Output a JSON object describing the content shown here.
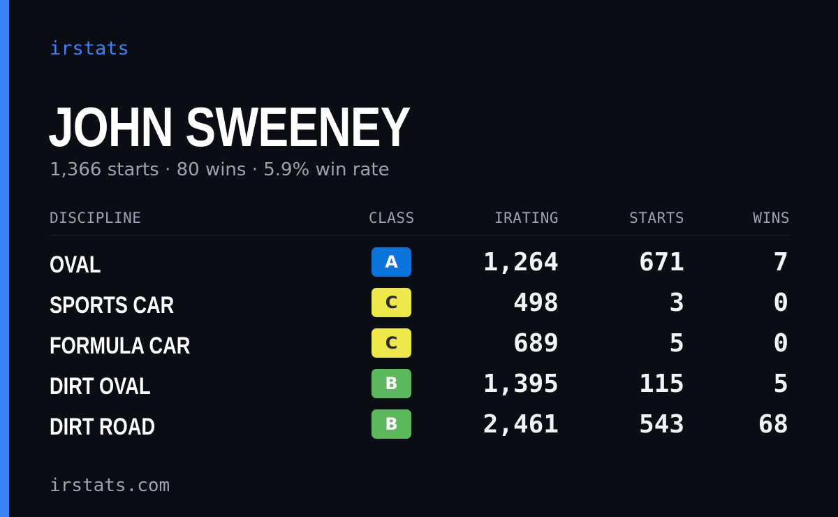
{
  "brand": {
    "logo_text": "irstats",
    "footer_url": "irstats.com",
    "accent_color": "#3b82f6"
  },
  "driver": {
    "name": "JOHN SWEENEY",
    "summary": "1,366 starts · 80 wins · 5.9% win rate"
  },
  "table": {
    "headers": {
      "discipline": "DISCIPLINE",
      "class": "CLASS",
      "irating": "IRATING",
      "starts": "STARTS",
      "wins": "WINS"
    },
    "rows": [
      {
        "discipline": "OVAL",
        "class": "A",
        "irating": "1,264",
        "starts": "671",
        "wins": "7"
      },
      {
        "discipline": "SPORTS CAR",
        "class": "C",
        "irating": "498",
        "starts": "3",
        "wins": "0"
      },
      {
        "discipline": "FORMULA CAR",
        "class": "C",
        "irating": "689",
        "starts": "5",
        "wins": "0"
      },
      {
        "discipline": "DIRT OVAL",
        "class": "B",
        "irating": "1,395",
        "starts": "115",
        "wins": "5"
      },
      {
        "discipline": "DIRT ROAD",
        "class": "B",
        "irating": "2,461",
        "starts": "543",
        "wins": "68"
      }
    ]
  },
  "class_colors": {
    "A": "#0b74da",
    "B": "#5cb85c",
    "C": "#ede74a"
  }
}
